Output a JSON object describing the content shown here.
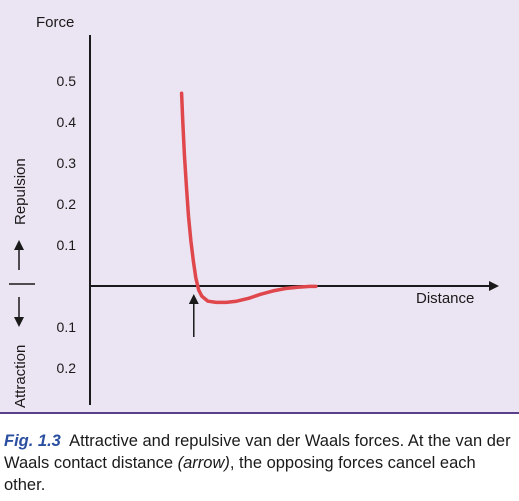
{
  "colors": {
    "curve": "#e0474c",
    "panel": "#ebe4f2",
    "caption_label": "#2b4fa0",
    "axis": "#1a1a1a"
  },
  "chart_data": {
    "type": "line",
    "title": "",
    "ylabel_top": "Force",
    "xlabel": "Distance",
    "repulsion_label": "Repulsion",
    "attraction_label": "Attraction",
    "repulsion_ticks": [
      "0.1",
      "0.2",
      "0.3",
      "0.4",
      "0.5"
    ],
    "attraction_ticks": [
      "0.1",
      "0.2"
    ],
    "ylim": [
      -0.3,
      0.6
    ],
    "xlim": [
      0,
      1
    ],
    "grid": false,
    "series": [
      {
        "x": [
          0.225,
          0.228,
          0.232,
          0.237,
          0.242,
          0.248,
          0.254,
          0.26,
          0.267,
          0.275,
          0.29,
          0.31,
          0.335,
          0.36,
          0.39,
          0.42,
          0.45,
          0.48,
          0.51,
          0.54,
          0.555
        ],
        "y": [
          0.47,
          0.4,
          0.32,
          0.24,
          0.17,
          0.11,
          0.06,
          0.02,
          -0.01,
          -0.025,
          -0.037,
          -0.04,
          -0.04,
          -0.037,
          -0.03,
          -0.02,
          -0.012,
          -0.006,
          -0.003,
          -0.001,
          -0.001
        ]
      }
    ],
    "annotation": {
      "type": "arrow",
      "x": 0.255,
      "meaning": "van der Waals contact distance"
    }
  },
  "caption": {
    "label": "Fig. 1.3",
    "text1": "Attractive and repulsive van der Waals forces. At the van der Waals contact distance ",
    "em": "(arrow)",
    "text2": ", the opposing forces cancel each other."
  }
}
